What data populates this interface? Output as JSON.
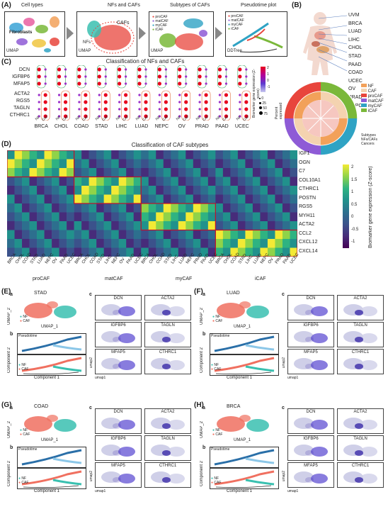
{
  "panels": {
    "A": "(A)",
    "B": "(B)",
    "C": "(C)",
    "D": "(D)",
    "E": "(E)",
    "F": "(F)",
    "G": "(G)",
    "H": "(H)"
  },
  "panelA": {
    "titles": [
      "Cell types",
      "NFs and CAFs",
      "Subtypes of CAFs",
      "Pseudotime plot"
    ],
    "fibroblasts": "Fibroblasts",
    "cafs": "CAFs",
    "nfs": "NFs",
    "umap": "UMAP",
    "ddtree": "DDTree",
    "subtype_legend": [
      "proCAF",
      "matCAF",
      "myCAF",
      "iCAF"
    ],
    "subtype_colors": [
      "#e8453c",
      "#8e5bd6",
      "#2fa3c4",
      "#7ab83a"
    ]
  },
  "panelB": {
    "cancers": [
      "UVM",
      "BRCA",
      "LUAD",
      "LIHC",
      "CHOL",
      "STAD",
      "PAAD",
      "COAD",
      "UCEC",
      "OV",
      "PRAD",
      "NEPC"
    ],
    "legend": [
      "NF",
      "CAF",
      "proCAF",
      "matCAF",
      "myCAF",
      "iCAF"
    ],
    "legend_colors": [
      "#f2a15a",
      "#f4d3b0",
      "#e8453c",
      "#8e5bd6",
      "#2fa3c4",
      "#7ab83a"
    ],
    "ring_labels": [
      "Subtypes",
      "NFs/CAFs",
      "Cancers"
    ]
  },
  "panelC": {
    "title": "Classification of NFs and CAFs",
    "genes": [
      "DCN",
      "IGFBP6",
      "MFAP5",
      "ACTA2",
      "RGS5",
      "TAGLN",
      "CTHRC1"
    ],
    "cancers": [
      "BRCA",
      "CHOL",
      "COAD",
      "STAD",
      "LIHC",
      "LUAD",
      "NEPC",
      "OV",
      "PRAD",
      "PAAD",
      "UCEC"
    ],
    "group_labels": [
      "NF",
      "CAF"
    ],
    "legend_title": "Biomarker gene expression (Z-score)",
    "colorbar_ticks": [
      "2",
      "1",
      "0",
      "-1"
    ],
    "size_title": "Percent expressed",
    "size_ticks": [
      "0",
      "25",
      "50",
      "75"
    ]
  },
  "panelD": {
    "title": "Classification of CAF subtypes",
    "genes": [
      "IGF1",
      "OGN",
      "C7",
      "COL10A1",
      "CTHRC1",
      "POSTN",
      "RGS5",
      "MYH11",
      "ACTA2",
      "CCL2",
      "CXCL12",
      "CXCL14"
    ],
    "groups": [
      "proCAF",
      "matCAF",
      "myCAF",
      "iCAF"
    ],
    "group_cancers": [
      [
        "BRCA",
        "CHOL",
        "COAD",
        "STAD",
        "LUAD",
        "NEPC",
        "OV",
        "PAAD",
        "UCEC"
      ],
      [
        "BRCA",
        "CHOL",
        "COAD",
        "STAD",
        "LIHC",
        "NEPC",
        "OV",
        "PAAD",
        "UCEC"
      ],
      [
        "BRCA",
        "CHOL",
        "COAD",
        "STAD",
        "LIHC",
        "LUAD",
        "NEPC",
        "PRAD",
        "PAAD",
        "UCEC"
      ],
      [
        "BRCA",
        "CHOL",
        "COAD",
        "STAD",
        "LIHC",
        "LUAD",
        "NEPC",
        "OV",
        "PRAD",
        "PAAD",
        "UCEC"
      ]
    ],
    "colorbar_title": "Biomarker gene expression (Z-score)",
    "colorbar_ticks": [
      "2",
      "1.5",
      "1",
      "0.5",
      "0",
      "-0.5",
      "-1"
    ]
  },
  "subpanels": {
    "a": "a",
    "b": "b",
    "c": "c",
    "umap1": "UMAP_1",
    "umap2": "UMAP_2",
    "component1": "Component 1",
    "component2": "Component 2",
    "pseudotime": "Pseudotime",
    "nf": "NF",
    "caf": "CAF",
    "umap_small_x": "umap1",
    "umap_small_y": "umap2",
    "genes": [
      "DCN",
      "ACTA2",
      "IGFBP6",
      "TAGLN",
      "MFAP5",
      "CTHRC1"
    ]
  },
  "panelE": {
    "cancer": "STAD"
  },
  "panelF": {
    "cancer": "LUAD"
  },
  "panelG": {
    "cancer": "COAD"
  },
  "panelH": {
    "cancer": "BRCA"
  }
}
